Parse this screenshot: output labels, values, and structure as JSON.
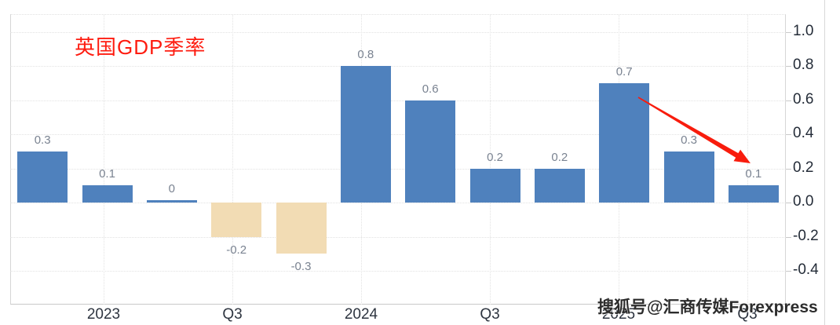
{
  "title": {
    "text": "英国GDP季率"
  },
  "watermark": {
    "text": "搜狐号@汇商传媒Forexpress"
  },
  "chart_data": {
    "type": "bar",
    "title": "英国GDP季率",
    "values": [
      0.3,
      0.1,
      0,
      -0.2,
      -0.3,
      0.8,
      0.6,
      0.2,
      0.2,
      0.7,
      0.3,
      0.1
    ],
    "data_labels": [
      "0.3",
      "0.1",
      "0",
      "-0.2",
      "-0.3",
      "0.8",
      "0.6",
      "0.2",
      "0.2",
      "0.7",
      "0.3",
      "0.1"
    ],
    "x_tick_labels": [
      "2023",
      "Q3",
      "2024",
      "Q3",
      "2025",
      "Q3"
    ],
    "y_tick_labels": [
      "1.0",
      "0.8",
      "0.6",
      "0.4",
      "0.2",
      "0.0",
      "-0.2",
      "-0.4"
    ],
    "y_ticks": [
      1.0,
      0.8,
      0.6,
      0.4,
      0.2,
      0.0,
      -0.2,
      -0.4
    ],
    "ylim": [
      -0.55,
      1.1
    ],
    "yaxis_position": "right",
    "grid": "dotted",
    "legend": "none",
    "colors": {
      "positive_bar": "#4f81bd",
      "negative_bar": "#f2dcb4",
      "title": "#fe1c10",
      "arrow": "#f81c0d",
      "value_label": "#7a8391",
      "axis_label": "#2e3540"
    },
    "annotation": {
      "type": "arrow",
      "color": "#f81c0d",
      "description": "red downward trend arrow from the 0.7 bar to the 0.1 bar"
    }
  }
}
